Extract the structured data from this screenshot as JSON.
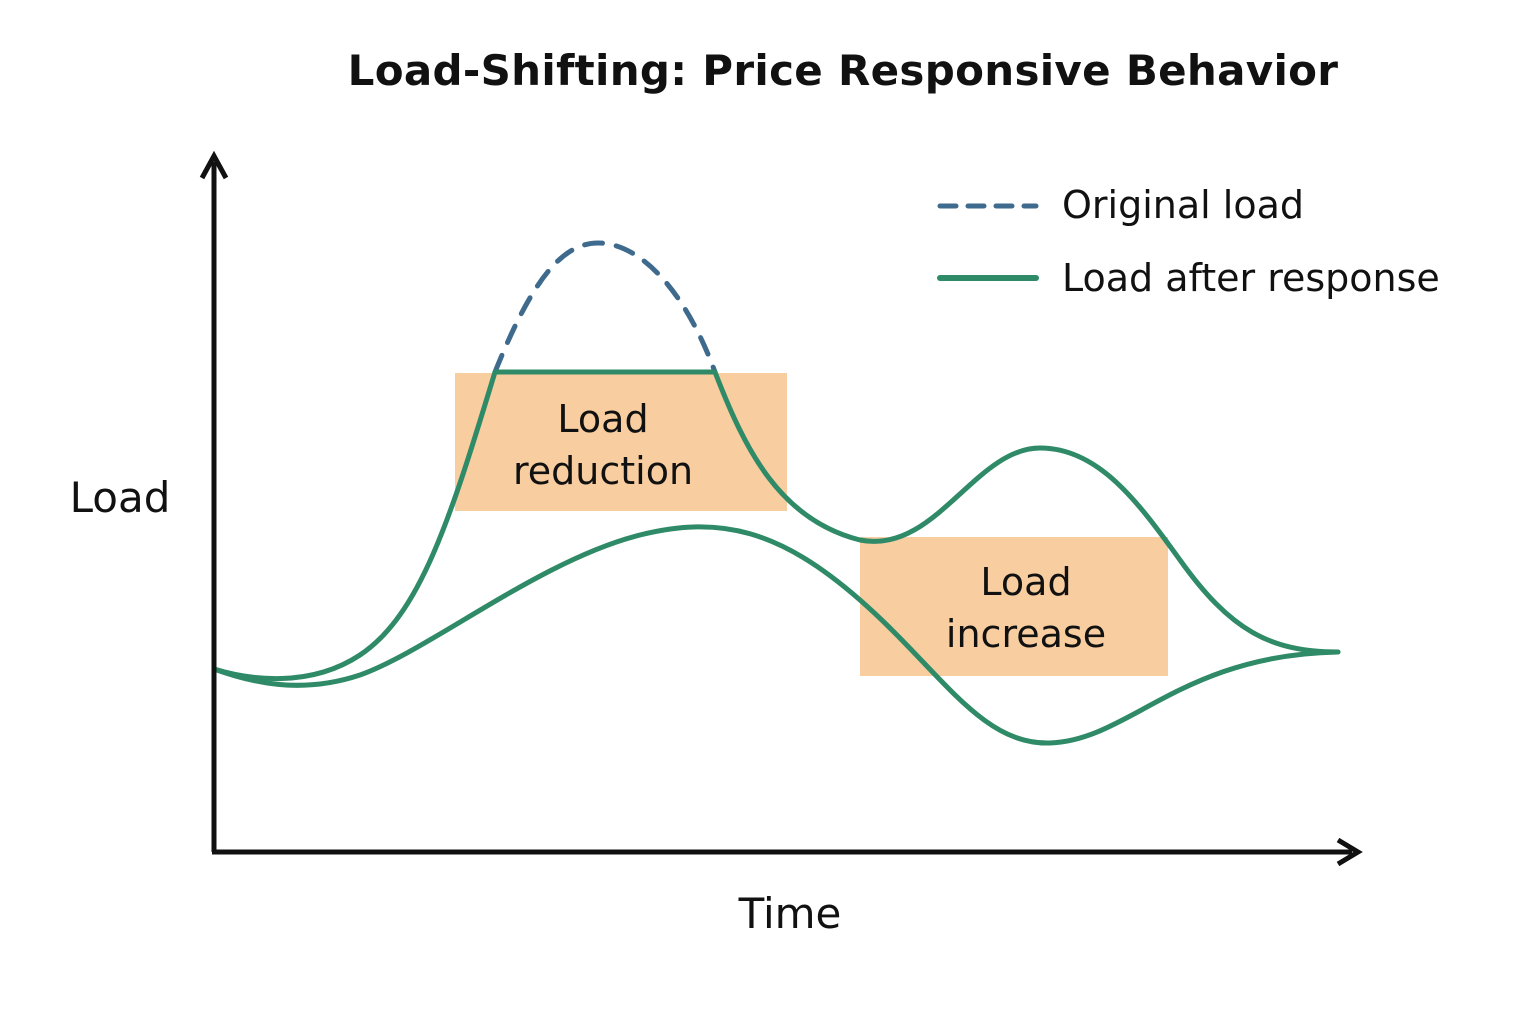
{
  "title": "Load-Shifting: Price Responsive Behavior",
  "axes": {
    "y_label": "Load",
    "x_label": "Time"
  },
  "legend": {
    "items": [
      {
        "label": "Original load",
        "style": "dashed",
        "color": "#3e6a8e"
      },
      {
        "label": "Load after response",
        "style": "solid",
        "color": "#2f8a67"
      }
    ]
  },
  "regions": {
    "reduction": {
      "line1": "Load",
      "line2": "reduction"
    },
    "increase": {
      "line1": "Load",
      "line2": "increase"
    }
  },
  "colors": {
    "original_line": "#3e6a8e",
    "response_line": "#2f8a67",
    "region_fill": "#f8cda0",
    "axis": "#111111",
    "text": "#111111"
  }
}
